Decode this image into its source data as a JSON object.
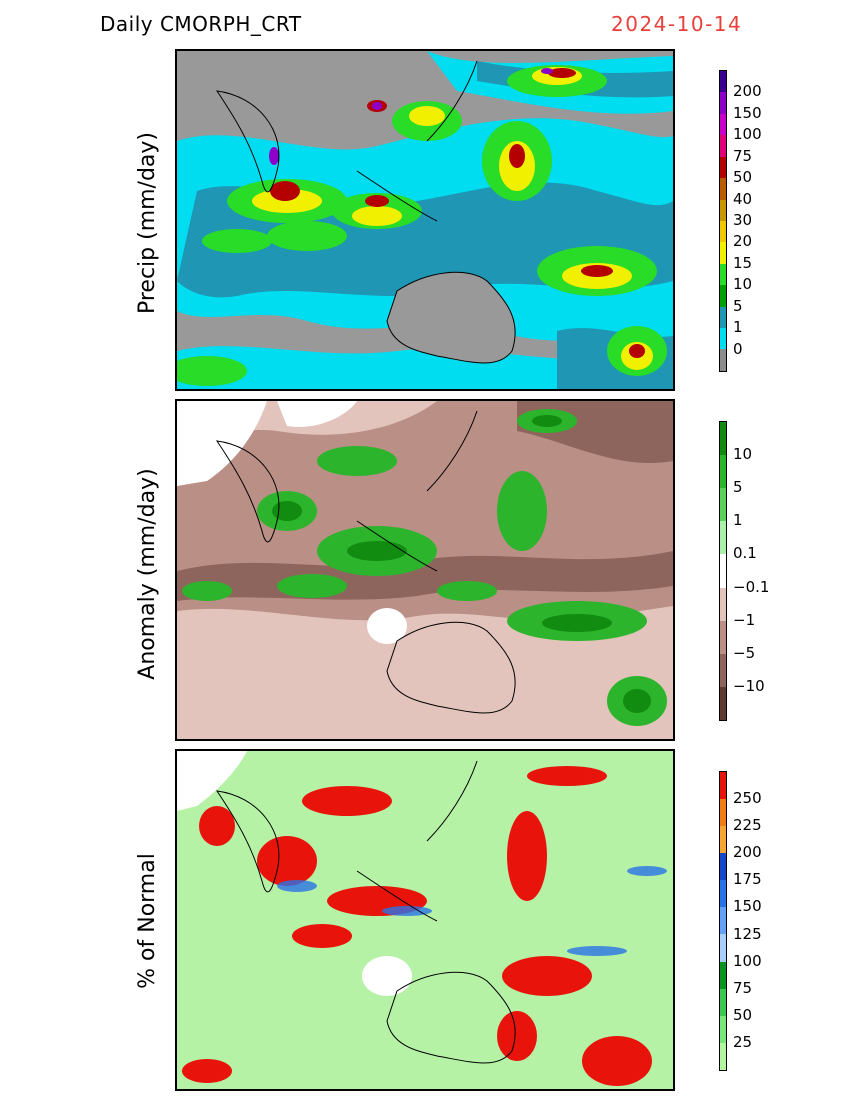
{
  "header": {
    "title": "Daily  CMORPH_CRT",
    "date": "2024-10-14",
    "date_color": "#e8403a"
  },
  "panels": [
    {
      "id": "precip",
      "ylabel": "Precip  (mm/day)",
      "background": "#999999",
      "levels": [
        "200",
        "150",
        "100",
        "75",
        "50",
        "40",
        "30",
        "20",
        "15",
        "10",
        "5",
        "1",
        "0"
      ],
      "colors": [
        "#3a0090",
        "#8c00c8",
        "#c800c8",
        "#e0007a",
        "#b40000",
        "#b85c00",
        "#c89600",
        "#f0c800",
        "#f0f000",
        "#28dc28",
        "#00a000",
        "#1e96b4",
        "#00dcf0",
        "#8c8c8c"
      ]
    },
    {
      "id": "anomaly",
      "ylabel": "Anomaly  (mm/day)",
      "background": "#b98f86",
      "levels": [
        "10",
        "5",
        "1",
        "0.1",
        "−0.1",
        "−1",
        "−5",
        "−10"
      ],
      "colors": [
        "#118c11",
        "#2cb42c",
        "#5ad25a",
        "#aaf0aa",
        "#ffffff",
        "#e2c4bc",
        "#b98f86",
        "#8e655c",
        "#5e3a32"
      ]
    },
    {
      "id": "percent",
      "ylabel": "%  of  Normal",
      "background": "#b6f2a6",
      "levels": [
        "250",
        "225",
        "200",
        "175",
        "150",
        "125",
        "100",
        "75",
        "50",
        "25"
      ],
      "colors": [
        "#e8140c",
        "#f07c14",
        "#f5a532",
        "#1446c8",
        "#2a73e6",
        "#64a2f5",
        "#aacdfa",
        "#0a961e",
        "#3cc850",
        "#78e678",
        "#b4f5a0"
      ]
    }
  ]
}
